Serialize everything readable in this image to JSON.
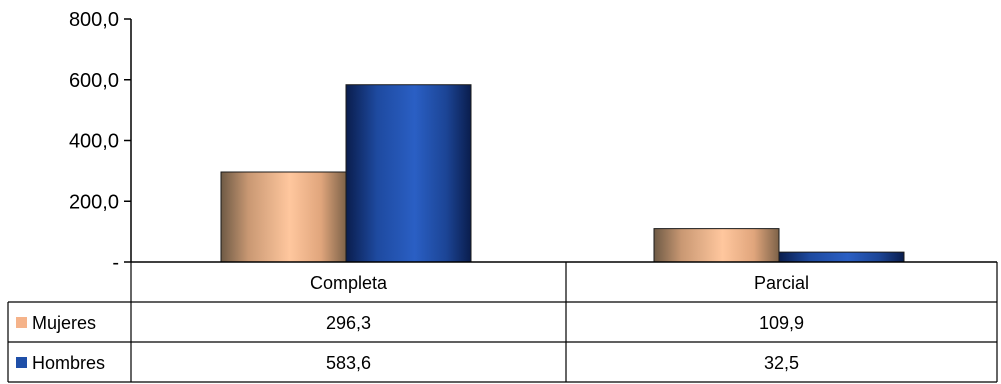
{
  "chart_data": {
    "type": "bar",
    "categories": [
      "Completa",
      "Parcial"
    ],
    "series": [
      {
        "name": "Mujeres",
        "values": [
          296.3,
          109.9
        ],
        "labels": [
          "296,3",
          "109,9"
        ],
        "color": "#f5b38a"
      },
      {
        "name": "Hombres",
        "values": [
          583.6,
          32.5
        ],
        "labels": [
          "583,6",
          "32,5"
        ],
        "color": "#1f4fa8"
      }
    ],
    "y_ticks": [
      {
        "value": 0,
        "label": "-"
      },
      {
        "value": 200,
        "label": "200,0"
      },
      {
        "value": 400,
        "label": "400,0"
      },
      {
        "value": 600,
        "label": "600,0"
      },
      {
        "value": 800,
        "label": "800,0"
      }
    ],
    "ylim": [
      0,
      800
    ],
    "title": "",
    "xlabel": "",
    "ylabel": "",
    "grid": false,
    "legend": "data-table"
  }
}
